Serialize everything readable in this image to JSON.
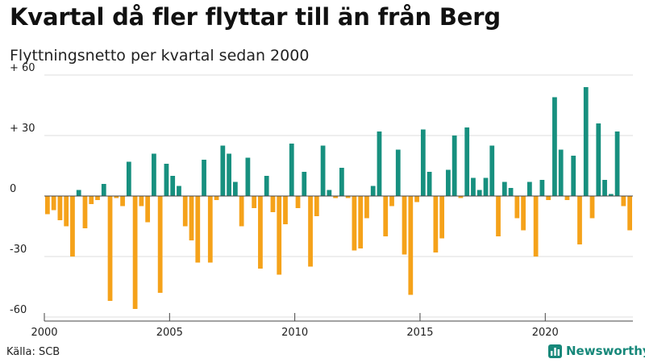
{
  "header": {
    "title": "Kvartal då fler flyttar till än från Berg",
    "subtitle": "Flyttningsnetto per kvartal sedan 2000"
  },
  "footer": {
    "source": "Källa: SCB",
    "brand": "Newsworthy"
  },
  "colors": {
    "positive": "#17907f",
    "negative": "#f5a21a",
    "grid": "#dddddd",
    "axis": "#444444",
    "brand": "#17887a"
  },
  "chart_data": {
    "type": "bar",
    "title": "Kvartal då fler flyttar till än från Berg",
    "subtitle": "Flyttningsnetto per kvartal sedan 2000",
    "xlabel": "",
    "ylabel": "",
    "ylim": [
      -62,
      62
    ],
    "grid": true,
    "legend": "none",
    "y_ticks": [
      {
        "value": 60,
        "label": "+ 60"
      },
      {
        "value": 30,
        "label": "+ 30"
      },
      {
        "value": 0,
        "label": "0"
      },
      {
        "value": -30,
        "label": "-30"
      },
      {
        "value": -60,
        "label": "-60"
      }
    ],
    "x_ticks": [
      {
        "value": 2000,
        "label": "2000"
      },
      {
        "value": 2005,
        "label": "2005"
      },
      {
        "value": 2010,
        "label": "2010"
      },
      {
        "value": 2015,
        "label": "2015"
      },
      {
        "value": 2020,
        "label": "2020"
      }
    ],
    "x_range": [
      2000,
      2023.75
    ],
    "start_year": 2000,
    "values": [
      -9,
      -7,
      -12,
      -15,
      -30,
      3,
      -16,
      -4,
      -2,
      6,
      -52,
      -1,
      -5,
      17,
      -56,
      -5,
      -13,
      21,
      -48,
      16,
      10,
      5,
      -15,
      -22,
      -33,
      18,
      -33,
      -2,
      25,
      21,
      7,
      -15,
      19,
      -6,
      -36,
      10,
      -8,
      -39,
      -14,
      26,
      -6,
      12,
      -35,
      -10,
      25,
      3,
      -1,
      14,
      -1,
      -27,
      -26,
      -11,
      5,
      32,
      -20,
      -5,
      23,
      -29,
      -49,
      -3,
      33,
      12,
      -28,
      -21,
      13,
      30,
      -1,
      34,
      9,
      3,
      9,
      25,
      -20,
      7,
      4,
      -11,
      -17,
      7,
      -30,
      8,
      -2,
      49,
      23,
      -2,
      20,
      -24,
      54,
      -11,
      36,
      8,
      1,
      32,
      -5,
      -17
    ]
  }
}
